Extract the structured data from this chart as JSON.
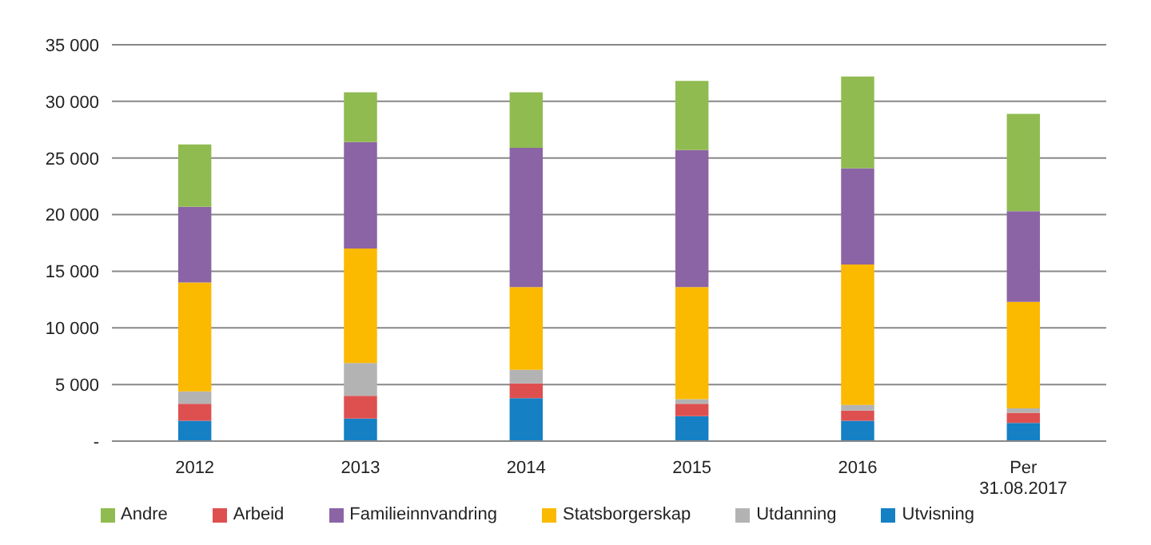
{
  "chart_data": {
    "type": "bar",
    "stacked": true,
    "categories": [
      "2012",
      "2013",
      "2014",
      "2015",
      "2016",
      "Per 31.08.2017"
    ],
    "series": [
      {
        "name": "Utvisning",
        "color": "#1580c4",
        "values": [
          1800,
          2000,
          3800,
          2200,
          1800,
          1600
        ]
      },
      {
        "name": "Arbeid",
        "color": "#de5050",
        "values": [
          1500,
          2000,
          1300,
          1100,
          900,
          900
        ]
      },
      {
        "name": "Utdanning",
        "color": "#b3b3b3",
        "values": [
          1100,
          2900,
          1200,
          400,
          500,
          400
        ]
      },
      {
        "name": "Statsborgerskap",
        "color": "#fbb900",
        "values": [
          9600,
          10100,
          7300,
          9900,
          12400,
          9400
        ]
      },
      {
        "name": "Familieinnvandring",
        "color": "#8b64a5",
        "values": [
          6700,
          9400,
          12300,
          12100,
          8500,
          8000
        ]
      },
      {
        "name": "Andre",
        "color": "#90bb50",
        "values": [
          5500,
          4400,
          4900,
          6100,
          8100,
          8600
        ]
      }
    ],
    "ylim": [
      0,
      35000
    ],
    "yticks": [
      {
        "value": 0,
        "label": "-"
      },
      {
        "value": 5000,
        "label": "5 000"
      },
      {
        "value": 10000,
        "label": "10 000"
      },
      {
        "value": 15000,
        "label": "15 000"
      },
      {
        "value": 20000,
        "label": "20 000"
      },
      {
        "value": 25000,
        "label": "25 000"
      },
      {
        "value": 30000,
        "label": "30 000"
      },
      {
        "value": 35000,
        "label": "35 000"
      }
    ],
    "grid": "y",
    "legend": "bottom"
  }
}
